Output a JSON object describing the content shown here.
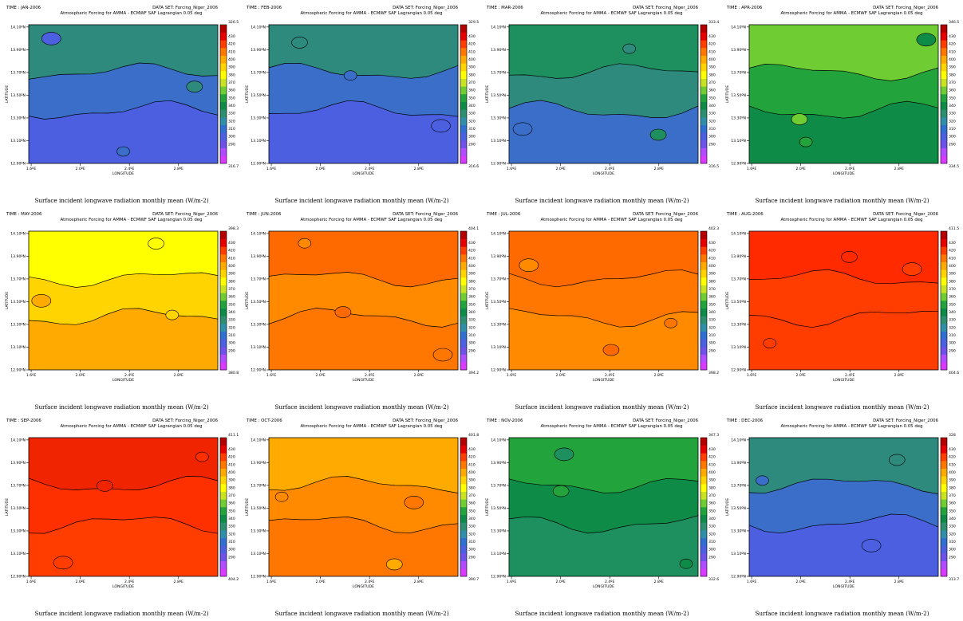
{
  "figure": {
    "dataset": "DATA SET: Forcing_Niger_2006",
    "subtitle": "Atmospheric Forcing for AMMA - ECMWF SAF Lagrangian 0.05 deg",
    "caption": "Surface incident longwave radiation monthly mean (W/m-2)",
    "xlabel": "LONGITUDE",
    "ylabel": "LATITUDE",
    "x_ticks": [
      "1.6ºE",
      "2.0ºE",
      "2.4ºE",
      "2.8ºE"
    ],
    "y_ticks": [
      "14.10ºN",
      "13.90ºN",
      "13.70ºN",
      "13.50ºN",
      "13.30ºN",
      "13.10ºN",
      "12.90ºN"
    ],
    "colorbar_levels": [
      "430",
      "420",
      "410",
      "400",
      "390",
      "380",
      "370",
      "360",
      "350",
      "340",
      "330",
      "320",
      "310",
      "300",
      "290"
    ]
  },
  "chart_data": {
    "type": "heatmap",
    "variable": "Surface incident longwave radiation monthly mean",
    "units": "W/m-2",
    "xlim": [
      1.58,
      3.12
    ],
    "ylim": [
      12.9,
      14.12
    ],
    "color_scale": {
      "levels": [
        290,
        300,
        310,
        320,
        330,
        340,
        350,
        360,
        370,
        380,
        390,
        400,
        410,
        420,
        430
      ],
      "colors": [
        "#d83aff",
        "#b04bff",
        "#6f50e8",
        "#4b5fe0",
        "#2f6fd0",
        "#2f8fa8",
        "#2e8f70",
        "#0d8b47",
        "#23a33c",
        "#6fcc33",
        "#c9e323",
        "#ffff00",
        "#ffd400",
        "#ffaa00",
        "#ff7700",
        "#ff3d00",
        "#e60000",
        "#b40000"
      ]
    },
    "panels": [
      {
        "time": "TIME : JAN-2006",
        "max": "326.5",
        "min": "316.7",
        "bands": [
          {
            "level": 320,
            "fill": "#4b5fe0"
          },
          {
            "level": 325,
            "fill": "#3a6ec8"
          },
          {
            "level": 330,
            "fill": "#2f8a7e"
          }
        ]
      },
      {
        "time": "TIME : FEB-2006",
        "max": "329.5",
        "min": "316.6",
        "bands": [
          {
            "level": 320,
            "fill": "#4b5fe0"
          },
          {
            "level": 325,
            "fill": "#3a6ec8"
          },
          {
            "level": 330,
            "fill": "#2f8a7e"
          }
        ]
      },
      {
        "time": "TIME : MAR-2006",
        "max": "333.4",
        "min": "316.5",
        "bands": [
          {
            "level": 325,
            "fill": "#3a6ec8"
          },
          {
            "level": 330,
            "fill": "#2f8a7e"
          },
          {
            "level": 335,
            "fill": "#1e8f5f"
          }
        ]
      },
      {
        "time": "TIME : APR-2006",
        "max": "346.5",
        "min": "334.5",
        "bands": [
          {
            "level": 340,
            "fill": "#0d8b47"
          },
          {
            "level": 345,
            "fill": "#23a33c"
          },
          {
            "level": 350,
            "fill": "#6fcc33"
          }
        ]
      },
      {
        "time": "TIME : MAY-2006",
        "max": "398.3",
        "min": "380.8",
        "bands": [
          {
            "level": 385,
            "fill": "#ffaa00"
          },
          {
            "level": 390,
            "fill": "#ffd400"
          },
          {
            "level": 395,
            "fill": "#ffff00"
          }
        ]
      },
      {
        "time": "TIME : JUN-2006",
        "max": "404.1",
        "min": "394.2",
        "bands": [
          {
            "level": 395,
            "fill": "#ff7700"
          },
          {
            "level": 400,
            "fill": "#ff8a00"
          },
          {
            "level": 405,
            "fill": "#ff6a00"
          }
        ]
      },
      {
        "time": "TIME : JUL-2006",
        "max": "402.3",
        "min": "398.2",
        "bands": [
          {
            "level": 400,
            "fill": "#ff8a00"
          },
          {
            "level": 405,
            "fill": "#ff7700"
          },
          {
            "level": 410,
            "fill": "#ff6a00"
          }
        ]
      },
      {
        "time": "TIME : AUG-2006",
        "max": "411.5",
        "min": "404.6",
        "bands": [
          {
            "level": 405,
            "fill": "#ff3d00"
          },
          {
            "level": 410,
            "fill": "#ff3d00"
          },
          {
            "level": 415,
            "fill": "#ff2a00"
          }
        ]
      },
      {
        "time": "TIME : SEP-2006",
        "max": "411.1",
        "min": "404.2",
        "bands": [
          {
            "level": 405,
            "fill": "#ff3d00"
          },
          {
            "level": 410,
            "fill": "#ff3000"
          },
          {
            "level": 415,
            "fill": "#f02500"
          }
        ]
      },
      {
        "time": "TIME : OCT-2006",
        "max": "401.8",
        "min": "390.7",
        "bands": [
          {
            "level": 395,
            "fill": "#ff7700"
          },
          {
            "level": 400,
            "fill": "#ff8a00"
          },
          {
            "level": 405,
            "fill": "#ffaa00"
          }
        ]
      },
      {
        "time": "TIME : NOV-2006",
        "max": "347.3",
        "min": "332.6",
        "bands": [
          {
            "level": 335,
            "fill": "#1e8f5f"
          },
          {
            "level": 340,
            "fill": "#0d8b47"
          },
          {
            "level": 345,
            "fill": "#23a33c"
          }
        ]
      },
      {
        "time": "TIME : DEC-2006",
        "max": "328",
        "min": "313.7",
        "bands": [
          {
            "level": 320,
            "fill": "#4b5fe0"
          },
          {
            "level": 325,
            "fill": "#3a6ec8"
          },
          {
            "level": 330,
            "fill": "#2f8a7e"
          }
        ]
      }
    ]
  }
}
